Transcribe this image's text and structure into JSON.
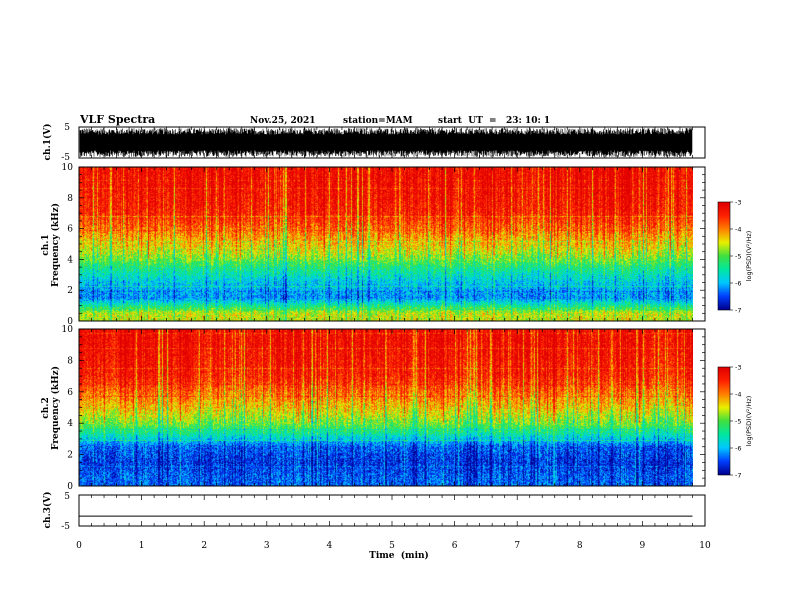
{
  "header": {
    "title": "VLF Spectra",
    "date": "Nov.25, 2021",
    "station": "station=MAM",
    "start": "start  UT  =   23: 10: 1"
  },
  "chart_data": [
    {
      "type": "line",
      "name": "ch1-waveform",
      "ylabel": "ch.1(V)",
      "ylim": [
        -5,
        5
      ],
      "yticks": [
        "5",
        "-5"
      ],
      "note": "dense broadband waveform filling the range"
    },
    {
      "type": "heatmap",
      "name": "ch1-spectrogram",
      "ylabel_top": "ch.1",
      "ylabel": "Frequency (kHz)",
      "ylim": [
        0,
        10
      ],
      "yticks": [
        "0",
        "2",
        "4",
        "6",
        "8",
        "10"
      ],
      "xlim": [
        0,
        10
      ],
      "colorbar": {
        "label": "log(PSD)(V²/Hz)",
        "range": [
          -7,
          -3
        ],
        "ticks": [
          "-3",
          "-4",
          "-5",
          "-6",
          "-7"
        ]
      },
      "profile": [
        {
          "freq_khz": 0.5,
          "log_psd": -4.6
        },
        {
          "freq_khz": 1.5,
          "log_psd": -6.2
        },
        {
          "freq_khz": 2.5,
          "log_psd": -5.9
        },
        {
          "freq_khz": 3.5,
          "log_psd": -5.3
        },
        {
          "freq_khz": 4.0,
          "log_psd": -4.9
        },
        {
          "freq_khz": 5.0,
          "log_psd": -4.3
        },
        {
          "freq_khz": 7.0,
          "log_psd": -3.4
        },
        {
          "freq_khz": 9.0,
          "log_psd": -3.2
        }
      ]
    },
    {
      "type": "heatmap",
      "name": "ch2-spectrogram",
      "ylabel_top": "ch.2",
      "ylabel": "Frequency (kHz)",
      "ylim": [
        0,
        10
      ],
      "yticks": [
        "0",
        "2",
        "4",
        "6",
        "8",
        "10"
      ],
      "xlim": [
        0,
        10
      ],
      "colorbar": {
        "label": "log(PSD)(V²/Hz)",
        "range": [
          -7,
          -3
        ],
        "ticks": [
          "-3",
          "-4",
          "-5",
          "-6",
          "-7"
        ]
      },
      "profile": [
        {
          "freq_khz": 0.5,
          "log_psd": -6.4
        },
        {
          "freq_khz": 1.5,
          "log_psd": -6.6
        },
        {
          "freq_khz": 2.5,
          "log_psd": -6.4
        },
        {
          "freq_khz": 3.5,
          "log_psd": -5.3
        },
        {
          "freq_khz": 4.0,
          "log_psd": -4.9
        },
        {
          "freq_khz": 5.0,
          "log_psd": -4.3
        },
        {
          "freq_khz": 7.0,
          "log_psd": -3.4
        },
        {
          "freq_khz": 9.0,
          "log_psd": -3.2
        }
      ]
    },
    {
      "type": "line",
      "name": "ch3-waveform",
      "ylabel": "ch.3(V)",
      "ylim": [
        -5,
        5
      ],
      "yticks": [
        "5",
        "-5"
      ],
      "x": [
        0,
        9.8
      ],
      "y": [
        -1.8,
        -1.8
      ]
    }
  ],
  "xaxis": {
    "label": "Time  (min)",
    "xlim": [
      0,
      10
    ],
    "ticks": [
      "0",
      "1",
      "2",
      "3",
      "4",
      "5",
      "6",
      "7",
      "8",
      "9",
      "10"
    ],
    "data_end_min": 9.8
  },
  "colors": {
    "colormap": [
      "#00008f",
      "#0040ff",
      "#00c8ff",
      "#00e8a0",
      "#40e040",
      "#e8f000",
      "#ff8000",
      "#ff2000",
      "#e00000"
    ]
  }
}
